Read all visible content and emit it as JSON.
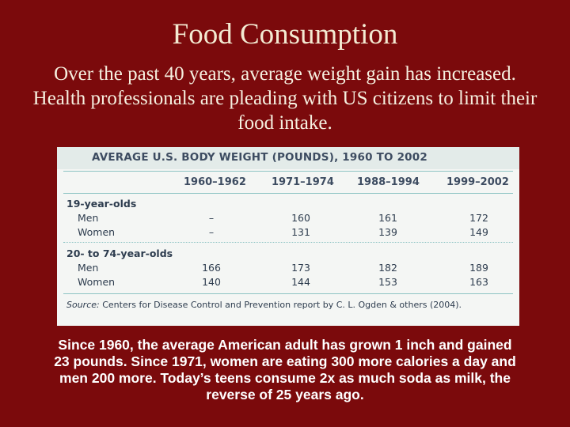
{
  "slide": {
    "title": "Food Consumption",
    "intro": "Over the past 40 years, average weight gain has increased. Health professionals are pleading with US citizens to limit their food intake.",
    "summary": "Since 1960, the average American adult has grown 1 inch and gained 23 pounds.  Since 1971, women are eating 300 more calories a day and men 200 more.  Today’s teens consume 2x as much soda as milk, the reverse of 25 years ago."
  },
  "table": {
    "title": "AVERAGE U.S. BODY WEIGHT (POUNDS), 1960 TO 2002",
    "columns": [
      "1960–1962",
      "1971–1974",
      "1988–1994",
      "1999–2002"
    ],
    "groups": [
      {
        "label": "19-year-olds",
        "rows": [
          {
            "label": "Men",
            "values": [
              "–",
              "160",
              "161",
              "172"
            ]
          },
          {
            "label": "Women",
            "values": [
              "–",
              "131",
              "139",
              "149"
            ]
          }
        ]
      },
      {
        "label": "20- to 74-year-olds",
        "rows": [
          {
            "label": "Men",
            "values": [
              "166",
              "173",
              "182",
              "189"
            ]
          },
          {
            "label": "Women",
            "values": [
              "140",
              "144",
              "153",
              "163"
            ]
          }
        ]
      }
    ],
    "source_label": "Source:",
    "source_text": "Centers for Disease Control and Prevention report by C. L. Ogden & others (2004)."
  },
  "colors": {
    "background": "#7b0a0c",
    "table_bg": "#f4f6f4",
    "rule": "#8dc3c3"
  }
}
